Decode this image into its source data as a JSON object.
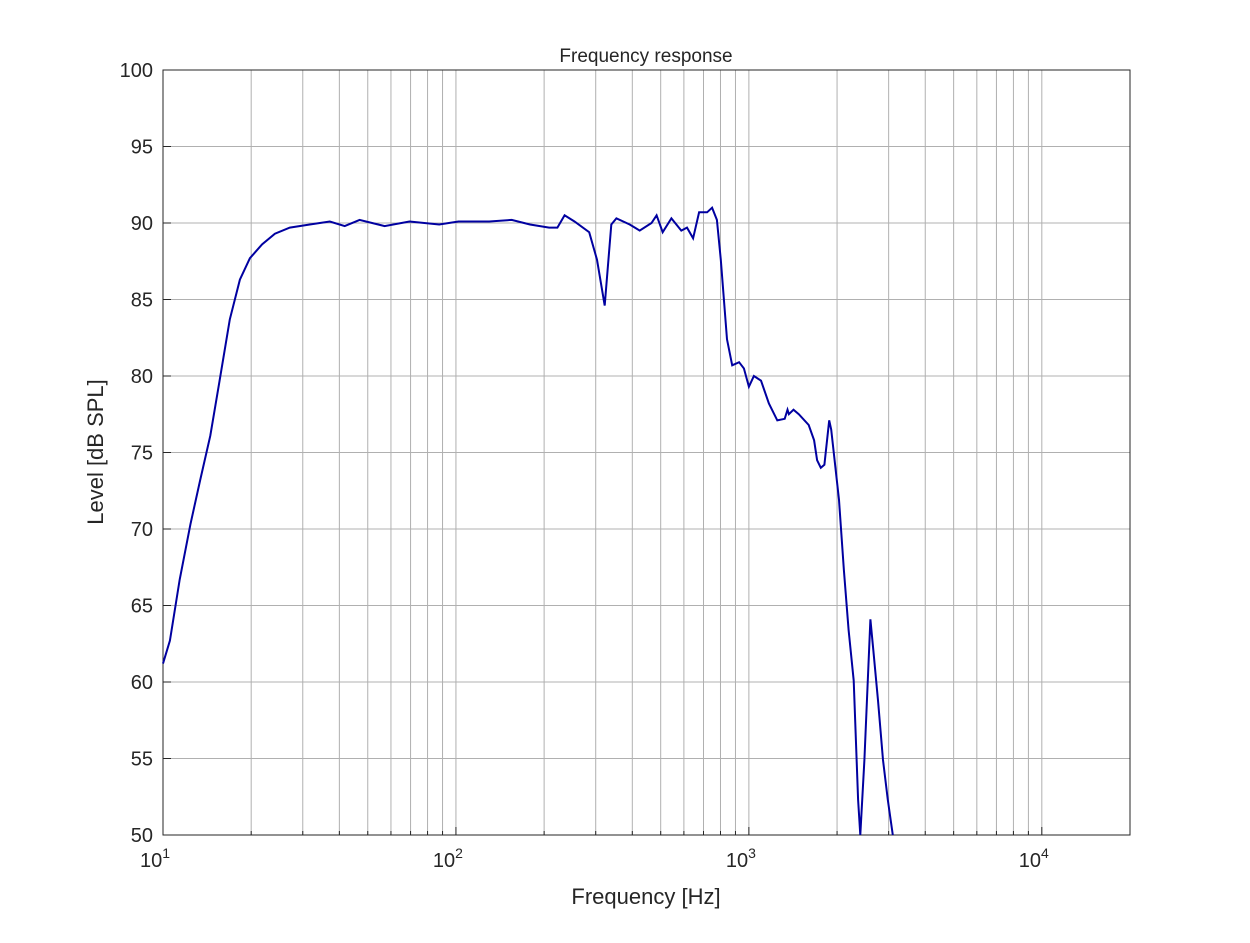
{
  "chart_data": {
    "type": "line",
    "title": "Frequency response",
    "xlabel": "Frequency [Hz]",
    "ylabel": "Level [dB SPL]",
    "xscale": "log",
    "xlim": [
      10,
      20000
    ],
    "ylim": [
      50,
      100
    ],
    "yticks": [
      50,
      55,
      60,
      65,
      70,
      75,
      80,
      85,
      90,
      95,
      100
    ],
    "xticks": [
      {
        "base": "10",
        "exp": "1",
        "value": 10
      },
      {
        "base": "10",
        "exp": "2",
        "value": 100
      },
      {
        "base": "10",
        "exp": "3",
        "value": 1000
      },
      {
        "base": "10",
        "exp": "4",
        "value": 10000
      }
    ],
    "grid": true,
    "line_color": "#0000a0",
    "series": [
      {
        "x": [
          10,
          10.56,
          11.4,
          12.4,
          13.4,
          14.5,
          15.6,
          16.9,
          18.3,
          19.8,
          21.8,
          24.1,
          27.1,
          31.7,
          37.1,
          41.7,
          46.9,
          57.1,
          69.4,
          87.7,
          102,
          130,
          155,
          179,
          208,
          222,
          235,
          254,
          285,
          303,
          322,
          339,
          353,
          392,
          424,
          465,
          484,
          508,
          544,
          588,
          615,
          645,
          676,
          720,
          749,
          778,
          802,
          842,
          877,
          926,
          962,
          1000,
          1040,
          1100,
          1170,
          1250,
          1325,
          1355,
          1370,
          1420,
          1480,
          1600,
          1670,
          1710,
          1760,
          1810,
          1880,
          1910,
          2030,
          2110,
          2190,
          2280,
          2360,
          2400,
          2480,
          2600,
          2660,
          2760,
          2870,
          2980,
          3100
        ],
        "y": [
          61.2,
          62.7,
          66.7,
          70.3,
          73.2,
          76.1,
          79.7,
          83.7,
          86.3,
          87.7,
          88.6,
          89.3,
          89.7,
          89.9,
          90.1,
          89.8,
          90.2,
          89.8,
          90.1,
          89.9,
          90.1,
          90.1,
          90.2,
          89.9,
          89.7,
          89.7,
          90.5,
          90.1,
          89.4,
          87.6,
          84.6,
          89.9,
          90.3,
          89.9,
          89.5,
          90,
          90.5,
          89.4,
          90.3,
          89.5,
          89.7,
          89,
          90.7,
          90.7,
          91,
          90.2,
          87.6,
          82.4,
          80.7,
          80.9,
          80.5,
          79.3,
          80,
          79.7,
          78.2,
          77.1,
          77.2,
          77.8,
          77.5,
          77.8,
          77.5,
          76.8,
          75.8,
          74.5,
          74,
          74.2,
          77.1,
          76.5,
          71.9,
          67.3,
          63.4,
          60.1,
          52.3,
          50,
          54.9,
          64.1,
          62.1,
          58.8,
          54.9,
          52.3,
          50
        ]
      }
    ]
  }
}
